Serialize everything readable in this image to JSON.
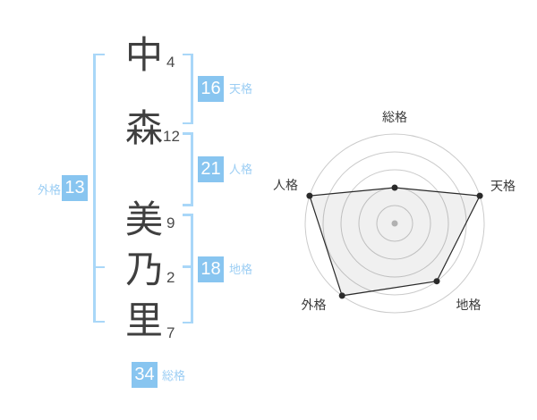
{
  "colors": {
    "background": "#ffffff",
    "accent_blue": "#88c5f0",
    "label_blue": "#9ccef4",
    "bracket_blue": "#a9d7f8",
    "text_dark": "#3f3f3f",
    "number_gray": "#4a4a4a",
    "ring_gray": "#cbcbcb",
    "center_dot_gray": "#bdbdbd",
    "polygon_stroke": "#2a2a2a",
    "polygon_fill": "rgba(0,0,0,0.06)",
    "chart_label_color": "#3a3a3a"
  },
  "name": {
    "characters": [
      {
        "char": "中",
        "strokes": "4"
      },
      {
        "char": "森",
        "strokes": "12"
      },
      {
        "char": "美",
        "strokes": "9"
      },
      {
        "char": "乃",
        "strokes": "2"
      },
      {
        "char": "里",
        "strokes": "7"
      }
    ]
  },
  "kaku": {
    "tenkaku": {
      "value": "16",
      "label": "天格"
    },
    "jinkaku": {
      "value": "21",
      "label": "人格"
    },
    "chikaku": {
      "value": "18",
      "label": "地格"
    },
    "gaikaku": {
      "value": "13",
      "label": "外格"
    },
    "soukaku": {
      "value": "34",
      "label": "総格"
    }
  },
  "chart_data": {
    "type": "radar",
    "categories": [
      "総格",
      "天格",
      "地格",
      "外格",
      "人格"
    ],
    "values": [
      40,
      100,
      80,
      100,
      100
    ],
    "max": 100,
    "rings": 5,
    "start_angle_deg": 90,
    "direction": "clockwise",
    "legend": "none",
    "grid": "concentric-circles"
  }
}
